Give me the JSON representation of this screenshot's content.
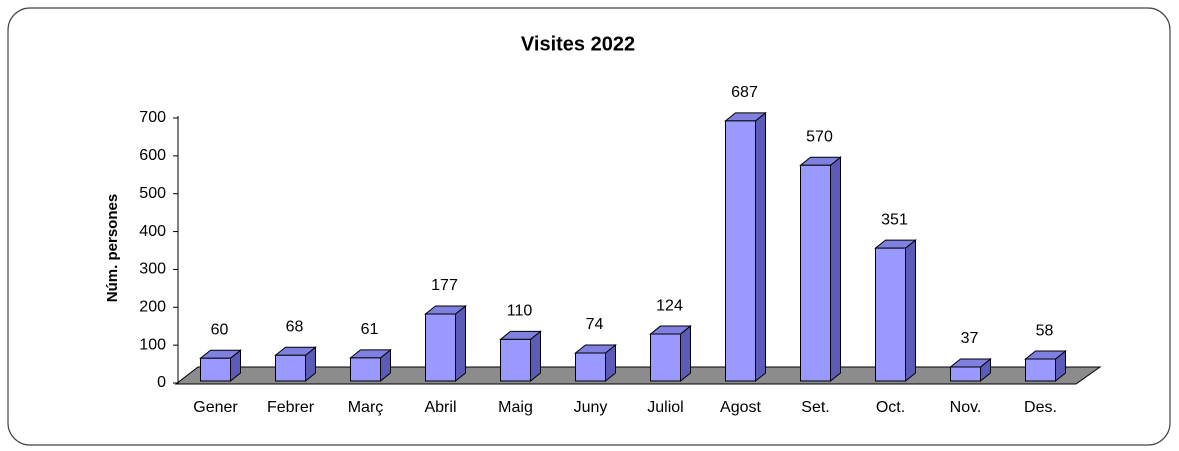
{
  "chart_data": {
    "type": "bar3d",
    "title": "Visites 2022",
    "y_label": "Núm. persones",
    "categories": [
      "Gener",
      "Febrer",
      "Març",
      "Abril",
      "Maig",
      "Juny",
      "Juliol",
      "Agost",
      "Set.",
      "Oct.",
      "Nov.",
      "Des."
    ],
    "values": [
      60,
      68,
      61,
      177,
      110,
      74,
      124,
      687,
      570,
      351,
      37,
      58
    ],
    "color": "#9999ff",
    "ylim": [
      0,
      700
    ],
    "yticks": [
      0,
      100,
      200,
      300,
      400,
      500,
      600,
      700
    ],
    "grid": false
  }
}
